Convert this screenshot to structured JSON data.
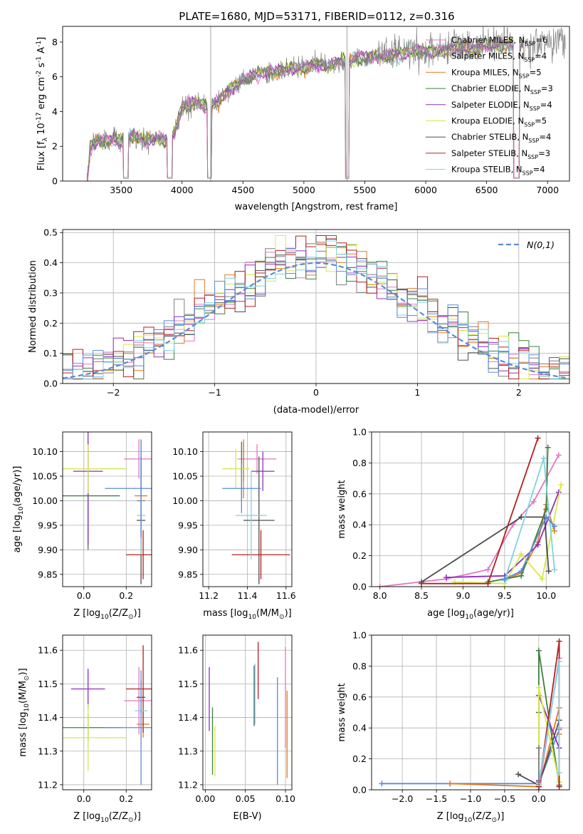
{
  "figure": {
    "title": "PLATE=1680, MJD=53171, FIBERID=0112, z=0.316"
  },
  "colors": {
    "Chabrier MILES": "#e377c2",
    "Salpeter MILES": "#7f7f7f",
    "Kroupa MILES": "#e07b24",
    "Chabrier ELODIE": "#3f7f3f",
    "Salpeter ELODIE": "#8e2fbf",
    "Kroupa ELODIE": "#d6e84a",
    "Chabrier STELIB": "#4d4d4d",
    "Salpeter STELIB": "#b22020",
    "Kroupa STELIB": "#7fd3e0",
    "Blue": "#5b8bd9",
    "data": "#808080",
    "grid": "#b0b0b0"
  },
  "chart_data": [
    {
      "id": "spectrum",
      "type": "line",
      "xlabel": "wavelength [Angstrom, rest frame]",
      "ylabel": "Flux [f$_\\lambda$ 10$^{-17}$ erg cm$^{-2}$ s$^{-1}$ A$^{-1}$]",
      "xlim": [
        3020,
        7180
      ],
      "ylim": [
        0,
        8.9
      ],
      "xticks": [
        3500,
        4000,
        4500,
        5000,
        5500,
        6000,
        6500,
        7000
      ],
      "yticks": [
        0,
        2,
        4,
        6,
        8
      ],
      "grid": false,
      "legend_position": "top-right",
      "legend": [
        {
          "label": "Chabrier MILES, N$_{SSP}$=6",
          "color": "#e377c2"
        },
        {
          "label": "Salpeter MILES, N$_{SSP}$=4",
          "color": "#7f7f7f"
        },
        {
          "label": "Kroupa MILES, N$_{SSP}$=5",
          "color": "#e07b24"
        },
        {
          "label": "Chabrier ELODIE, N$_{SSP}$=3",
          "color": "#3f7f3f"
        },
        {
          "label": "Salpeter ELODIE, N$_{SSP}$=4",
          "color": "#8e2fbf"
        },
        {
          "label": "Kroupa ELODIE, N$_{SSP}$=5",
          "color": "#d6e84a"
        },
        {
          "label": "Chabrier STELIB, N$_{SSP}$=4",
          "color": "#4d4d4d"
        },
        {
          "label": "Salpeter STELIB, N$_{SSP}$=3",
          "color": "#b22020"
        },
        {
          "label": "Kroupa STELIB, N$_{SSP}$=4",
          "color": "#7fd3e0"
        }
      ],
      "continuum": [
        [
          3220,
          0
        ],
        [
          3250,
          2.0
        ],
        [
          3300,
          2.3
        ],
        [
          3400,
          2.35
        ],
        [
          3500,
          2.3
        ],
        [
          3600,
          2.6
        ],
        [
          3700,
          2.3
        ],
        [
          3800,
          2.5
        ],
        [
          3900,
          2.2
        ],
        [
          3950,
          3.0
        ],
        [
          4000,
          4.3
        ],
        [
          4100,
          4.5
        ],
        [
          4200,
          4.3
        ],
        [
          4300,
          4.6
        ],
        [
          4400,
          5.3
        ],
        [
          4500,
          5.8
        ],
        [
          4600,
          6.1
        ],
        [
          4700,
          6.3
        ],
        [
          4800,
          6.3
        ],
        [
          4900,
          6.5
        ],
        [
          5000,
          6.5
        ],
        [
          5100,
          6.7
        ],
        [
          5200,
          6.6
        ],
        [
          5300,
          6.9
        ],
        [
          5400,
          7.0
        ],
        [
          5500,
          7.1
        ],
        [
          5600,
          7.2
        ],
        [
          5700,
          7.2
        ],
        [
          5800,
          7.3
        ],
        [
          5900,
          7.5
        ],
        [
          6000,
          7.4
        ],
        [
          6100,
          7.5
        ],
        [
          6200,
          7.6
        ],
        [
          6300,
          7.7
        ],
        [
          6400,
          7.6
        ],
        [
          6500,
          7.8
        ],
        [
          6600,
          7.8
        ],
        [
          6700,
          7.9
        ],
        [
          6800,
          7.9
        ]
      ],
      "absorption_drops": [
        [
          3520,
          3560
        ],
        [
          3880,
          3920
        ],
        [
          4210,
          4240
        ],
        [
          5340,
          5370
        ],
        [
          6720,
          6770
        ]
      ]
    },
    {
      "id": "residuals",
      "type": "line",
      "xlabel": "(data-model)/error",
      "ylabel": "Normed distribution",
      "xlim": [
        -2.5,
        2.5
      ],
      "ylim": [
        0,
        0.51
      ],
      "xticks": [
        -2,
        -1,
        0,
        1,
        2
      ],
      "yticks": [
        0.0,
        0.1,
        0.2,
        0.3,
        0.4,
        0.5
      ],
      "grid": true,
      "legend_position": "top-right",
      "legend": [
        {
          "label": "N(0,1)",
          "color": "#5b8bd9",
          "style": "dashed"
        }
      ],
      "bin_width": 0.1
    },
    {
      "id": "age-vs-Z",
      "type": "scatter",
      "xlabel": "Z [log$_{10}$(Z/Z$_\\odot$)]",
      "ylabel": "age  [log$_{10}$(age/yr)]",
      "xlim": [
        -0.1,
        0.32
      ],
      "ylim": [
        9.825,
        10.14
      ],
      "xticks": [
        0.0,
        0.2
      ],
      "yticks": [
        9.85,
        9.9,
        9.95,
        10.0,
        10.05,
        10.1
      ],
      "grid": true,
      "series": [
        {
          "color": "#e377c2",
          "x": 0.26,
          "xerr": 0.07,
          "y": 10.085,
          "yerr": 0.04
        },
        {
          "color": "#7f7f7f",
          "x": 0.27,
          "xerr": 0.02,
          "y": 10.0,
          "yerr": 0.08
        },
        {
          "color": "#e07b24",
          "x": 0.27,
          "xerr": 0.03,
          "y": 10.01,
          "yerr": 0.11
        },
        {
          "color": "#3f7f3f",
          "x": 0.02,
          "xerr": 0.15,
          "y": 10.01,
          "yerr": 0.11
        },
        {
          "color": "#8e2fbf",
          "x": 0.02,
          "xerr": 0.07,
          "y": 10.06,
          "yerr": 0.15
        },
        {
          "color": "#d6e84a",
          "x": 0.02,
          "xerr": 0.18,
          "y": 10.065,
          "yerr": 0.05
        },
        {
          "color": "#4d4d4d",
          "x": 0.27,
          "xerr": 0.02,
          "y": 9.96,
          "yerr": 0.13
        },
        {
          "color": "#b22020",
          "x": 0.28,
          "xerr": 0.08,
          "y": 9.89,
          "yerr": 0.05
        },
        {
          "color": "#7fd3e0",
          "x": 0.27,
          "xerr": 0.02,
          "y": 9.97,
          "yerr": 0.08
        },
        {
          "color": "#5b8bd9",
          "x": 0.27,
          "xerr": 0.17,
          "y": 10.025,
          "yerr": 0.1
        }
      ]
    },
    {
      "id": "age-vs-mass",
      "type": "scatter",
      "xlabel": "mass [log$_{10}$(M/M$_\\odot$)]",
      "ylabel": "",
      "xlim": [
        11.17,
        11.63
      ],
      "ylim": [
        9.825,
        10.14
      ],
      "xticks": [
        11.2,
        11.4,
        11.6
      ],
      "yticks": [
        9.85,
        9.9,
        9.95,
        10.0,
        10.05,
        10.1
      ],
      "grid": true,
      "series": [
        {
          "color": "#e377c2",
          "x": 11.45,
          "xerr": 0.1,
          "y": 10.085,
          "yerr": 0.03
        },
        {
          "color": "#7f7f7f",
          "x": 11.38,
          "xerr": 0.0,
          "y": 10.08,
          "yerr": 0.04
        },
        {
          "color": "#e07b24",
          "x": 11.38,
          "xerr": 0.0,
          "y": 10.065,
          "yerr": 0.06
        },
        {
          "color": "#3f7f3f",
          "x": 11.37,
          "xerr": 0.0,
          "y": 10.06,
          "yerr": 0.06
        },
        {
          "color": "#8e2fbf",
          "x": 11.48,
          "xerr": 0.06,
          "y": 10.06,
          "yerr": 0.04
        },
        {
          "color": "#d6e84a",
          "x": 11.34,
          "xerr": 0.07,
          "y": 10.065,
          "yerr": 0.04
        },
        {
          "color": "#4d4d4d",
          "x": 11.46,
          "xerr": 0.08,
          "y": 9.96,
          "yerr": 0.13
        },
        {
          "color": "#b22020",
          "x": 11.47,
          "xerr": 0.15,
          "y": 9.89,
          "yerr": 0.05
        },
        {
          "color": "#7fd3e0",
          "x": 11.42,
          "xerr": 0.08,
          "y": 9.97,
          "yerr": 0.09
        },
        {
          "color": "#5b8bd9",
          "x": 11.37,
          "xerr": 0.1,
          "y": 10.025,
          "yerr": 0.05
        }
      ]
    },
    {
      "id": "weight-vs-age",
      "type": "line",
      "xlabel": "age  [log$_{10}$(age/yr)]",
      "ylabel": "mass weight",
      "xlim": [
        7.9,
        10.28
      ],
      "ylim": [
        0,
        1.0
      ],
      "xticks": [
        8.0,
        8.5,
        9.0,
        9.5,
        10.0
      ],
      "yticks": [
        0.0,
        0.2,
        0.4,
        0.6,
        0.8,
        1.0
      ],
      "grid": true,
      "series": [
        {
          "color": "#e377c2",
          "x": [
            8.0,
            8.8,
            9.3,
            9.6,
            9.85,
            10.15
          ],
          "y": [
            0.0,
            0.05,
            0.11,
            0.4,
            0.55,
            0.85
          ]
        },
        {
          "color": "#e07b24",
          "x": [
            9.5,
            9.7,
            9.9,
            10.0,
            10.1
          ],
          "y": [
            0.04,
            0.09,
            0.29,
            0.53,
            0.36
          ]
        },
        {
          "color": "#3f7f3f",
          "x": [
            9.3,
            9.7,
            10.0,
            10.02
          ],
          "y": [
            0.03,
            0.07,
            0.5,
            0.9
          ]
        },
        {
          "color": "#8e2fbf",
          "x": [
            8.8,
            9.5,
            9.9,
            10.15
          ],
          "y": [
            0.06,
            0.07,
            0.27,
            0.61
          ]
        },
        {
          "color": "#d6e84a",
          "x": [
            8.9,
            9.5,
            9.7,
            9.95,
            10.18
          ],
          "y": [
            0.03,
            0.02,
            0.21,
            0.05,
            0.66
          ]
        },
        {
          "color": "#4d4d4d",
          "x": [
            8.5,
            9.7,
            9.98,
            10.03
          ],
          "y": [
            0.03,
            0.45,
            0.45,
            0.1
          ]
        },
        {
          "color": "#b22020",
          "x": [
            8.5,
            9.3,
            9.9
          ],
          "y": [
            0.02,
            0.02,
            0.96
          ]
        },
        {
          "color": "#7fd3e0",
          "x": [
            9.5,
            9.97,
            10.1
          ],
          "y": [
            0.04,
            0.83,
            0.11
          ]
        },
        {
          "color": "#5b8bd9",
          "x": [
            9.5,
            9.7,
            10.0,
            10.1
          ],
          "y": [
            0.05,
            0.1,
            0.45,
            0.39
          ]
        }
      ]
    },
    {
      "id": "mass-vs-Z",
      "type": "scatter",
      "xlabel": "Z [log$_{10}$(Z/Z$_\\odot$)]",
      "ylabel": "mass [log$_{10}$(M/M$_\\odot$)]",
      "xlim": [
        -0.1,
        0.32
      ],
      "ylim": [
        11.185,
        11.645
      ],
      "xticks": [
        0.0,
        0.2
      ],
      "yticks": [
        11.2,
        11.3,
        11.4,
        11.5,
        11.6
      ],
      "grid": true,
      "series": [
        {
          "color": "#e377c2",
          "x": 0.26,
          "xerr": 0.07,
          "y": 11.45,
          "yerr": 0.1
        },
        {
          "color": "#7f7f7f",
          "x": 0.27,
          "xerr": 0.0,
          "y": 11.38,
          "yerr": 0.0
        },
        {
          "color": "#e07b24",
          "x": 0.28,
          "xerr": 0.03,
          "y": 11.38,
          "yerr": 0.04
        },
        {
          "color": "#3f7f3f",
          "x": 0.02,
          "xerr": 0.16,
          "y": 11.37,
          "yerr": 0.04
        },
        {
          "color": "#8e2fbf",
          "x": 0.02,
          "xerr": 0.08,
          "y": 11.485,
          "yerr": 0.06
        },
        {
          "color": "#d6e84a",
          "x": 0.02,
          "xerr": 0.18,
          "y": 11.34,
          "yerr": 0.1
        },
        {
          "color": "#4d4d4d",
          "x": 0.27,
          "xerr": 0.02,
          "y": 11.46,
          "yerr": 0.05
        },
        {
          "color": "#b22020",
          "x": 0.28,
          "xerr": 0.08,
          "y": 11.485,
          "yerr": 0.13
        },
        {
          "color": "#7fd3e0",
          "x": 0.27,
          "xerr": 0.03,
          "y": 11.42,
          "yerr": 0.08
        },
        {
          "color": "#5b8bd9",
          "x": 0.27,
          "xerr": 0.17,
          "y": 11.37,
          "yerr": 0.17
        }
      ]
    },
    {
      "id": "mass-vs-ebv",
      "type": "scatter",
      "xlabel": "E(B-V)",
      "ylabel": "",
      "xlim": [
        -0.003,
        0.108
      ],
      "ylim": [
        11.185,
        11.645
      ],
      "xticks": [
        0.0,
        0.05,
        0.1
      ],
      "yticks": [
        11.2,
        11.3,
        11.4,
        11.5,
        11.6
      ],
      "grid": true,
      "series": [
        {
          "color": "#e377c2",
          "x": 0.1,
          "y": 11.46,
          "yerr": 0.15
        },
        {
          "color": "#e07b24",
          "x": 0.102,
          "y": 11.35,
          "yerr": 0.13
        },
        {
          "color": "#3f7f3f",
          "x": 0.009,
          "y": 11.33,
          "yerr": 0.1
        },
        {
          "color": "#8e2fbf",
          "x": 0.005,
          "y": 11.455,
          "yerr": 0.095
        },
        {
          "color": "#d6e84a",
          "x": 0.012,
          "y": 11.3,
          "yerr": 0.075
        },
        {
          "color": "#4d4d4d",
          "x": 0.061,
          "y": 11.465,
          "yerr": 0.09
        },
        {
          "color": "#b22020",
          "x": 0.066,
          "y": 11.54,
          "yerr": 0.085
        },
        {
          "color": "#7fd3e0",
          "x": 0.062,
          "y": 11.47,
          "yerr": 0.09
        },
        {
          "color": "#5b8bd9",
          "x": 0.09,
          "y": 11.36,
          "yerr": 0.16
        }
      ]
    },
    {
      "id": "weight-vs-Z",
      "type": "line",
      "xlabel": "Z [log$_{10}$(Z/Z$_\\odot$)]",
      "ylabel": "mass weight",
      "xlim": [
        -2.45,
        0.45
      ],
      "ylim": [
        0,
        1.0
      ],
      "xticks": [
        -2.0,
        -1.5,
        -1.0,
        -0.5,
        0.0
      ],
      "yticks": [
        0.0,
        0.2,
        0.4,
        0.6,
        0.8,
        1.0
      ],
      "grid": true,
      "series": [
        {
          "color": "#5b8bd9",
          "x": [
            -2.3,
            -1.3,
            0.0,
            0.3
          ],
          "y": [
            0.04,
            0.04,
            0.04,
            0.39
          ]
        },
        {
          "color": "#e07b24",
          "x": [
            -1.3,
            0.0,
            0.3,
            0.3
          ],
          "y": [
            0.04,
            0.02,
            0.53,
            0.36
          ]
        },
        {
          "color": "#4d4d4d",
          "x": [
            -0.3,
            0.0,
            0.3
          ],
          "y": [
            0.1,
            0.03,
            0.45
          ]
        },
        {
          "color": "#e377c2",
          "x": [
            0.0,
            0.3,
            0.3
          ],
          "y": [
            0.0,
            0.85,
            0.4
          ]
        },
        {
          "color": "#3f7f3f",
          "x": [
            0.0,
            0.0,
            0.3
          ],
          "y": [
            0.5,
            0.9,
            0.03
          ]
        },
        {
          "color": "#8e2fbf",
          "x": [
            0.0,
            0.0,
            0.3
          ],
          "y": [
            0.06,
            0.61,
            0.27
          ]
        },
        {
          "color": "#d6e84a",
          "x": [
            0.0,
            0.0,
            0.3
          ],
          "y": [
            0.03,
            0.66,
            0.05
          ]
        },
        {
          "color": "#b22020",
          "x": [
            0.0,
            0.3,
            0.3
          ],
          "y": [
            0.02,
            0.96,
            0.02
          ]
        },
        {
          "color": "#7fd3e0",
          "x": [
            0.0,
            0.3,
            0.3
          ],
          "y": [
            0.04,
            0.83,
            0.11
          ]
        },
        {
          "color": "#7f7f7f",
          "x": [
            0.0,
            0.0
          ],
          "y": [
            0.27,
            0.05
          ]
        }
      ]
    }
  ]
}
